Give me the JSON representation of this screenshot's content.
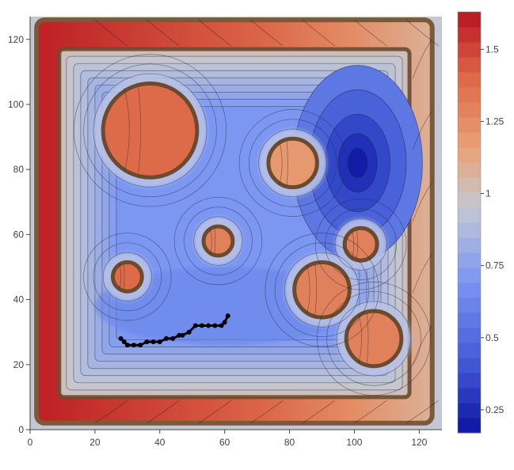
{
  "chart_data": {
    "type": "heatmap",
    "title": "",
    "xlabel": "",
    "ylabel": "",
    "xlim": [
      0,
      127
    ],
    "ylim": [
      0,
      127
    ],
    "x_ticks": [
      0,
      20,
      40,
      60,
      80,
      100,
      120
    ],
    "y_ticks": [
      0,
      20,
      40,
      60,
      80,
      100,
      120
    ],
    "colorscale": {
      "range": [
        0.17,
        1.63
      ],
      "ticks": [
        0.25,
        0.5,
        0.75,
        1,
        1.25,
        1.5
      ],
      "tick_labels": [
        "0.25",
        "0.5",
        "0.75",
        "1",
        "1.25",
        "1.5"
      ],
      "levels": 28,
      "stops": [
        {
          "v": 0.17,
          "color": "#0a14a0"
        },
        {
          "v": 0.4,
          "color": "#3f56d4"
        },
        {
          "v": 0.7,
          "color": "#7b97f2"
        },
        {
          "v": 0.95,
          "color": "#c4c8d4"
        },
        {
          "v": 1.15,
          "color": "#e8a478"
        },
        {
          "v": 1.4,
          "color": "#dd6a48"
        },
        {
          "v": 1.63,
          "color": "#b81420"
        }
      ]
    },
    "outer_wall": {
      "x0": 2,
      "x1": 124,
      "y0": 2,
      "y1": 126,
      "value": 1.45
    },
    "inner_region": {
      "x0": 9,
      "x1": 117,
      "y0": 10,
      "y1": 117,
      "value": 0.7
    },
    "obstacles": [
      {
        "cx": 37,
        "cy": 92,
        "r": 14.5,
        "value": 1.4
      },
      {
        "cx": 81,
        "cy": 82,
        "r": 7.5,
        "value": 1.2
      },
      {
        "cx": 58,
        "cy": 58,
        "r": 4.5,
        "value": 1.3
      },
      {
        "cx": 30,
        "cy": 47,
        "r": 4.5,
        "value": 1.4
      },
      {
        "cx": 90,
        "cy": 43,
        "r": 8.5,
        "value": 1.3
      },
      {
        "cx": 102,
        "cy": 57,
        "r": 5,
        "value": 1.3
      },
      {
        "cx": 106,
        "cy": 28,
        "r": 8.5,
        "value": 1.3
      }
    ],
    "low_minimum": {
      "x": 104,
      "y": 81,
      "value": 0.2
    },
    "path": {
      "x": [
        28,
        29,
        30,
        32,
        34,
        36,
        38,
        40,
        42,
        44,
        46,
        47,
        49,
        51,
        53,
        55,
        57,
        59,
        60,
        61
      ],
      "y": [
        28,
        27,
        26,
        26,
        26,
        27,
        27,
        27,
        28,
        28,
        29,
        29,
        30,
        32,
        32,
        32,
        32,
        32,
        33,
        35
      ]
    }
  }
}
